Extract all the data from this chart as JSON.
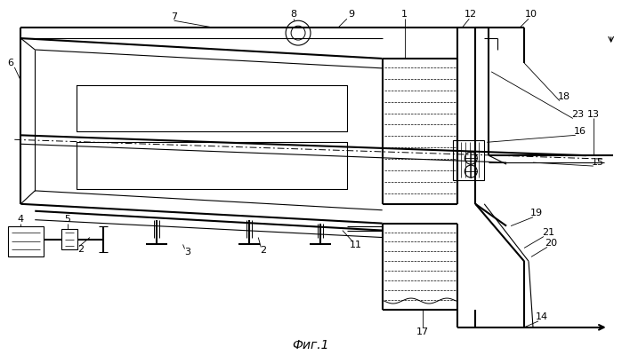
{
  "title": "Фиг.1",
  "bg_color": "#ffffff",
  "line_color": "#000000",
  "fig_width": 6.99,
  "fig_height": 4.0,
  "dpi": 100
}
